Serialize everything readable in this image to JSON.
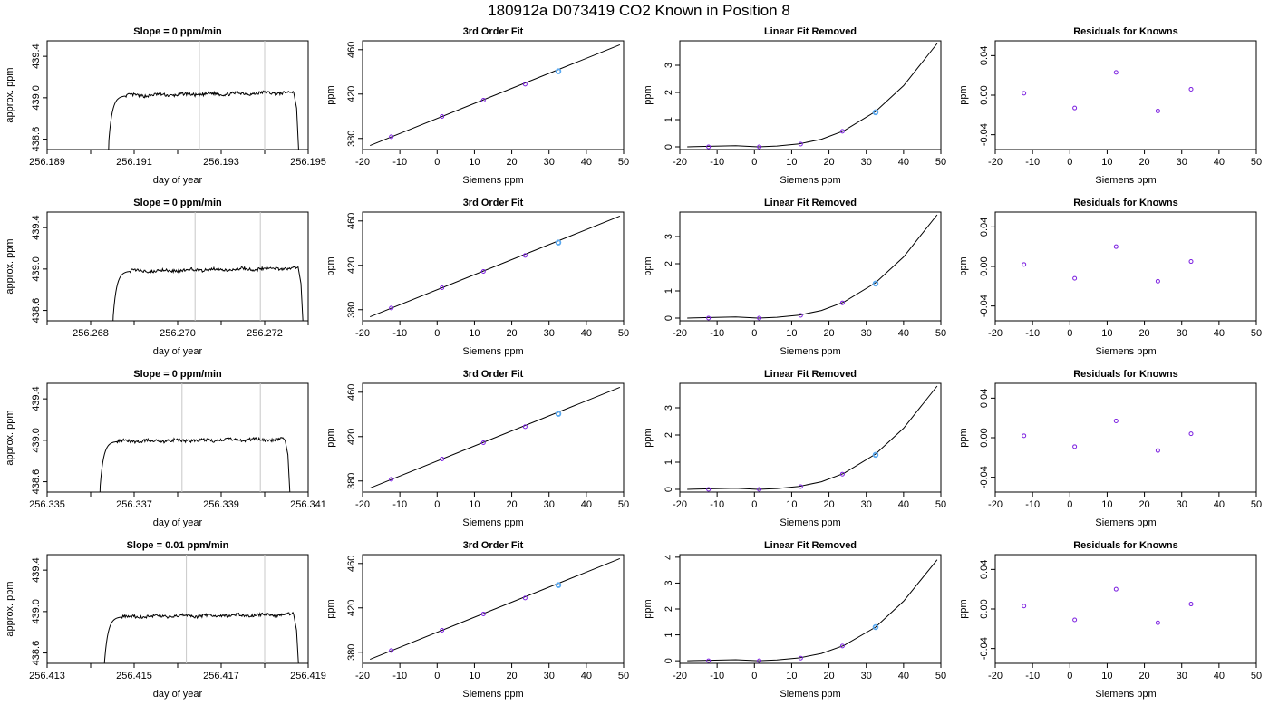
{
  "figure": {
    "title": "180912a     D073419   CO2 Known in Position  8"
  },
  "chart_data": [
    {
      "panel": "timeseries",
      "row": 1,
      "type": "line",
      "title": "Slope =  0  ppm/min",
      "xlabel": "day of year",
      "ylabel": "approx. ppm",
      "xlim": [
        256.189,
        256.195
      ],
      "ylim": [
        438.5,
        439.55
      ],
      "xticks": [
        256.189,
        256.19,
        256.191,
        256.192,
        256.193,
        256.194,
        256.195
      ],
      "xtick_labels": [
        "256.189",
        "",
        "256.191",
        "",
        "256.193",
        "",
        "256.195"
      ],
      "yticks": [
        438.6,
        439.0,
        439.4
      ],
      "ytick_labels": [
        "438.6",
        "439.0",
        "439.4"
      ],
      "vlines": [
        256.1925,
        256.194
      ],
      "trace": {
        "x_start": 256.1904,
        "x_end": 256.1948,
        "plateau": 439.02,
        "plateau_end": 439.05
      }
    },
    {
      "panel": "fit",
      "row": 1,
      "type": "scatter",
      "title": "3rd Order Fit",
      "xlabel": "Siemens ppm",
      "ylabel": "ppm",
      "xlim": [
        -20,
        50
      ],
      "ylim": [
        370,
        468
      ],
      "xticks": [
        -20,
        -10,
        0,
        10,
        20,
        30,
        40,
        50
      ],
      "yticks": [
        380,
        420,
        460
      ],
      "points": {
        "x": [
          -12.3,
          1.3,
          12.4,
          23.6,
          32.5
        ],
        "y": [
          381.5,
          399.8,
          414.5,
          428.9,
          440.5
        ]
      },
      "fit_line": {
        "x": [
          -18,
          49
        ],
        "y": [
          373.6,
          464.4
        ]
      }
    },
    {
      "panel": "linear_removed",
      "row": 1,
      "type": "scatter",
      "title": "Linear Fit Removed",
      "xlabel": "Siemens ppm",
      "ylabel": "ppm",
      "xlim": [
        -20,
        50
      ],
      "ylim": [
        -0.1,
        3.9
      ],
      "xticks": [
        -20,
        -10,
        0,
        10,
        20,
        30,
        40,
        50
      ],
      "yticks": [
        0,
        1,
        2,
        3
      ],
      "points": {
        "x": [
          -12.3,
          1.3,
          12.4,
          23.6,
          32.5
        ],
        "y": [
          0.0,
          0.0,
          0.1,
          0.57,
          1.27
        ]
      },
      "curve": {
        "x": [
          -18,
          -12,
          -5,
          1,
          6,
          12,
          18,
          24,
          32.5,
          40,
          49
        ],
        "y": [
          0,
          0.02,
          0.04,
          0.0,
          0.03,
          0.11,
          0.28,
          0.59,
          1.3,
          2.25,
          3.8
        ]
      }
    },
    {
      "panel": "residuals",
      "row": 1,
      "type": "scatter",
      "title": "Residuals for Knowns",
      "xlabel": "Siemens ppm",
      "ylabel": "ppm",
      "xlim": [
        -20,
        50
      ],
      "ylim": [
        -0.055,
        0.055
      ],
      "xticks": [
        -20,
        -10,
        0,
        10,
        20,
        30,
        40,
        50
      ],
      "yticks": [
        -0.04,
        0.0,
        0.04
      ],
      "ytick_labels": [
        "-0.04",
        "0.00",
        "0.04"
      ],
      "points": {
        "x": [
          -12.3,
          1.3,
          12.4,
          23.6,
          32.5
        ],
        "y": [
          0.002,
          -0.013,
          0.023,
          -0.016,
          0.006
        ]
      }
    },
    {
      "panel": "timeseries",
      "row": 2,
      "type": "line",
      "title": "Slope =  0  ppm/min",
      "xlabel": "day of year",
      "ylabel": "approx. ppm",
      "xlim": [
        256.267,
        256.273
      ],
      "ylim": [
        438.5,
        439.55
      ],
      "xticks": [
        256.267,
        256.268,
        256.269,
        256.27,
        256.271,
        256.272,
        256.273
      ],
      "xtick_labels": [
        "",
        "256.268",
        "",
        "256.270",
        "",
        "256.272",
        ""
      ],
      "yticks": [
        438.6,
        439.0,
        439.4
      ],
      "ytick_labels": [
        "438.6",
        "439.0",
        "439.4"
      ],
      "vlines": [
        256.2704,
        256.2719
      ],
      "trace": {
        "x_start": 256.2685,
        "x_end": 256.2729,
        "plateau": 438.98,
        "plateau_end": 439.01
      }
    },
    {
      "panel": "fit",
      "row": 2,
      "type": "scatter",
      "title": "3rd Order Fit",
      "xlabel": "Siemens ppm",
      "ylabel": "ppm",
      "xlim": [
        -20,
        50
      ],
      "ylim": [
        370,
        468
      ],
      "xticks": [
        -20,
        -10,
        0,
        10,
        20,
        30,
        40,
        50
      ],
      "yticks": [
        380,
        420,
        460
      ],
      "points": {
        "x": [
          -12.3,
          1.3,
          12.4,
          23.6,
          32.5
        ],
        "y": [
          381.5,
          399.8,
          414.5,
          428.9,
          440.5
        ]
      },
      "fit_line": {
        "x": [
          -18,
          49
        ],
        "y": [
          373.6,
          464.4
        ]
      }
    },
    {
      "panel": "linear_removed",
      "row": 2,
      "type": "scatter",
      "title": "Linear Fit Removed",
      "xlabel": "Siemens ppm",
      "ylabel": "ppm",
      "xlim": [
        -20,
        50
      ],
      "ylim": [
        -0.1,
        3.9
      ],
      "xticks": [
        -20,
        -10,
        0,
        10,
        20,
        30,
        40,
        50
      ],
      "yticks": [
        0,
        1,
        2,
        3
      ],
      "points": {
        "x": [
          -12.3,
          1.3,
          12.4,
          23.6,
          32.5
        ],
        "y": [
          0.0,
          0.0,
          0.1,
          0.56,
          1.27
        ]
      },
      "curve": {
        "x": [
          -18,
          -12,
          -5,
          1,
          6,
          12,
          18,
          24,
          32.5,
          40,
          49
        ],
        "y": [
          0,
          0.02,
          0.04,
          0.0,
          0.03,
          0.11,
          0.28,
          0.59,
          1.3,
          2.25,
          3.8
        ]
      }
    },
    {
      "panel": "residuals",
      "row": 2,
      "type": "scatter",
      "title": "Residuals for Knowns",
      "xlabel": "Siemens ppm",
      "ylabel": "ppm",
      "xlim": [
        -20,
        50
      ],
      "ylim": [
        -0.055,
        0.055
      ],
      "xticks": [
        -20,
        -10,
        0,
        10,
        20,
        30,
        40,
        50
      ],
      "yticks": [
        -0.04,
        0.0,
        0.04
      ],
      "ytick_labels": [
        "-0.04",
        "0.00",
        "0.04"
      ],
      "points": {
        "x": [
          -12.3,
          1.3,
          12.4,
          23.6,
          32.5
        ],
        "y": [
          0.002,
          -0.012,
          0.02,
          -0.015,
          0.005
        ]
      }
    },
    {
      "panel": "timeseries",
      "row": 3,
      "type": "line",
      "title": "Slope =  0  ppm/min",
      "xlabel": "day of year",
      "ylabel": "approx. ppm",
      "xlim": [
        256.335,
        256.341
      ],
      "ylim": [
        438.5,
        439.55
      ],
      "xticks": [
        256.335,
        256.336,
        256.337,
        256.338,
        256.339,
        256.34,
        256.341
      ],
      "xtick_labels": [
        "256.335",
        "",
        "256.337",
        "",
        "256.339",
        "",
        "256.341"
      ],
      "yticks": [
        438.6,
        439.0,
        439.4
      ],
      "ytick_labels": [
        "438.6",
        "439.0",
        "439.4"
      ],
      "vlines": [
        256.3381,
        256.3399
      ],
      "trace": {
        "x_start": 256.3362,
        "x_end": 256.3406,
        "plateau": 438.99,
        "plateau_end": 439.01
      }
    },
    {
      "panel": "fit",
      "row": 3,
      "type": "scatter",
      "title": "3rd Order Fit",
      "xlabel": "Siemens ppm",
      "ylabel": "ppm",
      "xlim": [
        -20,
        50
      ],
      "ylim": [
        370,
        468
      ],
      "xticks": [
        -20,
        -10,
        0,
        10,
        20,
        30,
        40,
        50
      ],
      "yticks": [
        380,
        420,
        460
      ],
      "points": {
        "x": [
          -12.3,
          1.3,
          12.4,
          23.6,
          32.5
        ],
        "y": [
          381.5,
          399.8,
          414.5,
          428.9,
          440.5
        ]
      },
      "fit_line": {
        "x": [
          -18,
          49
        ],
        "y": [
          373.6,
          464.4
        ]
      }
    },
    {
      "panel": "linear_removed",
      "row": 3,
      "type": "scatter",
      "title": "Linear Fit Removed",
      "xlabel": "Siemens ppm",
      "ylabel": "ppm",
      "xlim": [
        -20,
        50
      ],
      "ylim": [
        -0.1,
        3.9
      ],
      "xticks": [
        -20,
        -10,
        0,
        10,
        20,
        30,
        40,
        50
      ],
      "yticks": [
        0,
        1,
        2,
        3
      ],
      "points": {
        "x": [
          -12.3,
          1.3,
          12.4,
          23.6,
          32.5
        ],
        "y": [
          0.0,
          0.0,
          0.1,
          0.56,
          1.27
        ]
      },
      "curve": {
        "x": [
          -18,
          -12,
          -5,
          1,
          6,
          12,
          18,
          24,
          32.5,
          40,
          49
        ],
        "y": [
          0,
          0.02,
          0.04,
          0.0,
          0.03,
          0.11,
          0.28,
          0.59,
          1.3,
          2.25,
          3.8
        ]
      }
    },
    {
      "panel": "residuals",
      "row": 3,
      "type": "scatter",
      "title": "Residuals for Knowns",
      "xlabel": "Siemens ppm",
      "ylabel": "ppm",
      "xlim": [
        -20,
        50
      ],
      "ylim": [
        -0.055,
        0.055
      ],
      "xticks": [
        -20,
        -10,
        0,
        10,
        20,
        30,
        40,
        50
      ],
      "yticks": [
        -0.04,
        0.0,
        0.04
      ],
      "ytick_labels": [
        "-0.04",
        "0.00",
        "0.04"
      ],
      "points": {
        "x": [
          -12.3,
          1.3,
          12.4,
          23.6,
          32.5
        ],
        "y": [
          0.002,
          -0.009,
          0.017,
          -0.013,
          0.004
        ]
      }
    },
    {
      "panel": "timeseries",
      "row": 4,
      "type": "line",
      "title": "Slope =  0.01  ppm/min",
      "xlabel": "day of year",
      "ylabel": "approx. ppm",
      "xlim": [
        256.413,
        256.419
      ],
      "ylim": [
        438.5,
        439.55
      ],
      "xticks": [
        256.413,
        256.414,
        256.415,
        256.416,
        256.417,
        256.418,
        256.419
      ],
      "xtick_labels": [
        "256.413",
        "",
        "256.415",
        "",
        "256.417",
        "",
        "256.419"
      ],
      "yticks": [
        438.6,
        439.0,
        439.4
      ],
      "ytick_labels": [
        "438.6",
        "439.0",
        "439.4"
      ],
      "vlines": [
        256.4162,
        256.418
      ],
      "trace": {
        "x_start": 256.4143,
        "x_end": 256.4188,
        "plateau": 438.95,
        "plateau_end": 438.97
      }
    },
    {
      "panel": "fit",
      "row": 4,
      "type": "scatter",
      "title": "3rd Order Fit",
      "xlabel": "Siemens ppm",
      "ylabel": "ppm",
      "xlim": [
        -20,
        50
      ],
      "ylim": [
        370,
        468
      ],
      "xticks": [
        -20,
        -10,
        0,
        10,
        20,
        30,
        40,
        50
      ],
      "yticks": [
        380,
        420,
        460
      ],
      "points": {
        "x": [
          -12.3,
          1.3,
          12.4,
          23.6,
          32.5
        ],
        "y": [
          381.5,
          399.8,
          414.5,
          428.9,
          440.5
        ]
      },
      "fit_line": {
        "x": [
          -18,
          49
        ],
        "y": [
          373.6,
          464.4
        ]
      }
    },
    {
      "panel": "linear_removed",
      "row": 4,
      "type": "scatter",
      "title": "Linear Fit Removed",
      "xlabel": "Siemens ppm",
      "ylabel": "ppm",
      "xlim": [
        -20,
        50
      ],
      "ylim": [
        -0.1,
        4.1
      ],
      "xticks": [
        -20,
        -10,
        0,
        10,
        20,
        30,
        40,
        50
      ],
      "yticks": [
        0,
        1,
        2,
        3,
        4
      ],
      "points": {
        "x": [
          -12.3,
          1.3,
          12.4,
          23.6,
          32.5
        ],
        "y": [
          0.0,
          0.0,
          0.1,
          0.57,
          1.3
        ]
      },
      "curve": {
        "x": [
          -18,
          -12,
          -5,
          1,
          6,
          12,
          18,
          24,
          32.5,
          40,
          49
        ],
        "y": [
          0,
          0.02,
          0.04,
          0.0,
          0.03,
          0.11,
          0.28,
          0.59,
          1.3,
          2.3,
          3.9
        ]
      }
    },
    {
      "panel": "residuals",
      "row": 4,
      "type": "scatter",
      "title": "Residuals for Knowns",
      "xlabel": "Siemens ppm",
      "ylabel": "ppm",
      "xlim": [
        -20,
        50
      ],
      "ylim": [
        -0.055,
        0.055
      ],
      "xticks": [
        -20,
        -10,
        0,
        10,
        20,
        30,
        40,
        50
      ],
      "yticks": [
        -0.04,
        0.0,
        0.04
      ],
      "ytick_labels": [
        "-0.04",
        "0.00",
        "0.04"
      ],
      "points": {
        "x": [
          -12.3,
          1.3,
          12.4,
          23.6,
          32.5
        ],
        "y": [
          0.003,
          -0.011,
          0.02,
          -0.014,
          0.005
        ]
      }
    }
  ],
  "colors": {
    "point": "#7b1fe0",
    "highlight": "#5aa9f0",
    "trace": "#000000",
    "vline": "#c8c8c8",
    "axes": "#000000"
  }
}
